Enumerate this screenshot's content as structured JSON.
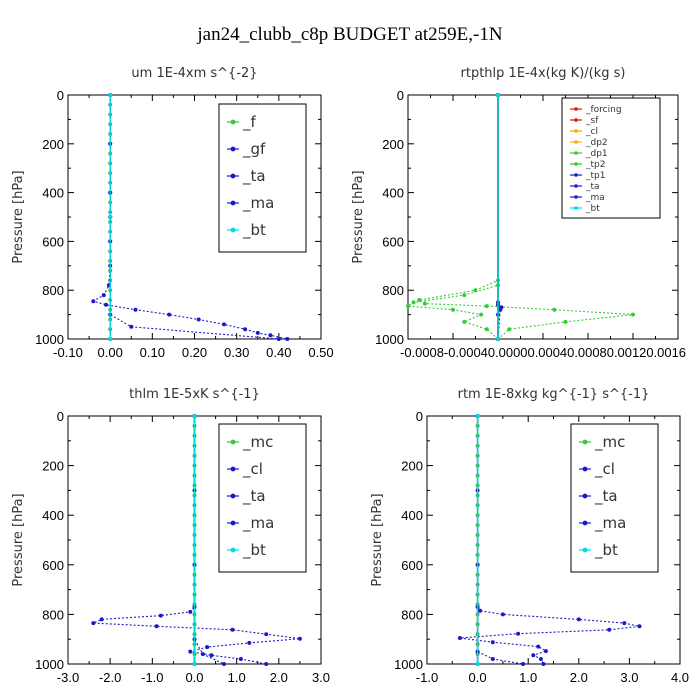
{
  "figure": {
    "title": "jan24_clubb_c8p  BUDGET at259E,-1N"
  },
  "colors": {
    "green": "#33cc33",
    "blue": "#1a1acc",
    "orange": "#ffaa00",
    "red": "#dd1111",
    "cyan": "#00dddd",
    "darkblue": "#0a0a99"
  },
  "chart_data": [
    {
      "type": "line",
      "title": "um   1E-4xm  s^{-2}",
      "xlabel": "",
      "ylabel": "",
      "xlim": [
        -0.1,
        0.5
      ],
      "ylim": [
        1000,
        0
      ],
      "xticks": [
        "-0.10",
        "0.00",
        "0.10",
        "0.20",
        "0.30",
        "0.40",
        "0.50"
      ],
      "yticks": [
        "0",
        "200",
        "400",
        "600",
        "800",
        "1000"
      ],
      "legend_position": "upper-right",
      "series": [
        {
          "name": "_f",
          "color": "#33cc33",
          "y": [
            0,
            40,
            80,
            120,
            160,
            200,
            240,
            280,
            320,
            360,
            400,
            440,
            480,
            520,
            560,
            600,
            640,
            680,
            720,
            760,
            800,
            840,
            880,
            920,
            960,
            1000
          ],
          "x": [
            0,
            0,
            0,
            0,
            0,
            0,
            0,
            0,
            0,
            0,
            0,
            0,
            0,
            0,
            0,
            0,
            0,
            0,
            0,
            0,
            0,
            0,
            0,
            0,
            0,
            0
          ]
        },
        {
          "name": "_gf",
          "color": "#1a1acc",
          "y": [
            0,
            200,
            400,
            600,
            700,
            780,
            820,
            845,
            860,
            880,
            900,
            920,
            940,
            960,
            975,
            985,
            1000
          ],
          "x": [
            0,
            0,
            0,
            0,
            0,
            -0.003,
            -0.015,
            -0.04,
            -0.01,
            0.06,
            0.14,
            0.21,
            0.27,
            0.32,
            0.35,
            0.38,
            0.42
          ]
        },
        {
          "name": "_ta",
          "color": "#1a1acc",
          "y": [
            0,
            500,
            900,
            950,
            1000
          ],
          "x": [
            0,
            0,
            0,
            0.05,
            0.4
          ]
        },
        {
          "name": "_ma",
          "color": "#1a1acc",
          "y": [
            0,
            500,
            1000
          ],
          "x": [
            0,
            0,
            0
          ]
        },
        {
          "name": "_bt",
          "color": "#00dddd",
          "y": [
            0,
            500,
            1000
          ],
          "x": [
            0,
            0,
            0
          ]
        }
      ]
    },
    {
      "type": "line",
      "title": "rtpthlp   1E-4x(kg K)/(kg s)",
      "xlabel": "",
      "ylabel": "",
      "xlim": [
        -0.0008,
        0.0016
      ],
      "ylim": [
        1000,
        0
      ],
      "xticks": [
        "-0.0008",
        "-0.0004",
        "0.0000",
        "0.0004",
        "0.0008",
        "0.0012",
        "0.0016"
      ],
      "xtick_row": "-0.0008-0.00040.00000.00040.00080.00120.0016",
      "yticks": [
        "0",
        "200",
        "400",
        "600",
        "800",
        "1000"
      ],
      "legend_position": "upper-right",
      "series": [
        {
          "name": "_forcing",
          "color": "#dd1111",
          "y": [
            0,
            1000
          ],
          "x": [
            0,
            0
          ]
        },
        {
          "name": "_sf",
          "color": "#dd1111",
          "y": [
            0,
            1000
          ],
          "x": [
            0,
            0
          ]
        },
        {
          "name": "_cl",
          "color": "#ffaa00",
          "y": [
            0,
            1000
          ],
          "x": [
            0,
            0
          ]
        },
        {
          "name": "_dp2",
          "color": "#ffaa00",
          "y": [
            0,
            1000
          ],
          "x": [
            0,
            0
          ]
        },
        {
          "name": "_dp1",
          "color": "#33cc33",
          "y": [
            0,
            760,
            800,
            840,
            855,
            865,
            880,
            900,
            930,
            960,
            1000
          ],
          "x": [
            0,
            0,
            -0.0002,
            -0.0007,
            -0.00065,
            -0.0001,
            0.0005,
            0.0012,
            0.0006,
            0.0001,
            0
          ]
        },
        {
          "name": "_tp2",
          "color": "#33cc33",
          "y": [
            0,
            780,
            820,
            850,
            865,
            880,
            900,
            930,
            960,
            1000
          ],
          "x": [
            0,
            0,
            -0.0003,
            -0.00075,
            -0.0008,
            -0.0004,
            -0.00015,
            -0.0003,
            -0.0001,
            0
          ]
        },
        {
          "name": "_tp1",
          "color": "#1a1acc",
          "y": [
            0,
            850,
            870,
            900,
            1000
          ],
          "x": [
            0,
            0,
            3e-05,
            0,
            0
          ]
        },
        {
          "name": "_ta",
          "color": "#1a1acc",
          "y": [
            0,
            860,
            880,
            1000
          ],
          "x": [
            0,
            0,
            2e-05,
            0
          ]
        },
        {
          "name": "_ma",
          "color": "#1a1acc",
          "y": [
            0,
            1000
          ],
          "x": [
            0,
            0
          ]
        },
        {
          "name": "_bt",
          "color": "#00dddd",
          "y": [
            0,
            1000
          ],
          "x": [
            0,
            0
          ]
        }
      ]
    },
    {
      "type": "line",
      "title": "thlm   1E-5xK  s^{-1}",
      "xlabel": "",
      "ylabel": "",
      "xlim": [
        -3.0,
        3.0
      ],
      "ylim": [
        1000,
        0
      ],
      "xticks": [
        "-3.0",
        "-2.0",
        "-1.0",
        "0.0",
        "1.0",
        "2.0",
        "3.0"
      ],
      "yticks": [
        "0",
        "200",
        "400",
        "600",
        "800",
        "1000"
      ],
      "legend_position": "upper-right",
      "series": [
        {
          "name": "_mc",
          "color": "#33cc33",
          "y": [
            0,
            40,
            80,
            120,
            160,
            200,
            240,
            280,
            320,
            360,
            400,
            440,
            480,
            520,
            560,
            600,
            640,
            680,
            720,
            760,
            800,
            840,
            880,
            920,
            960,
            1000
          ],
          "x": [
            0,
            0,
            0,
            0,
            0,
            0,
            0,
            0,
            0,
            0,
            0,
            0,
            0,
            0,
            0,
            0,
            0,
            0,
            0,
            0,
            0,
            0,
            0,
            0,
            0,
            0
          ]
        },
        {
          "name": "_cl",
          "color": "#1a1acc",
          "y": [
            0,
            300,
            600,
            770,
            790,
            805,
            820,
            835,
            848,
            862,
            880,
            898,
            915,
            932,
            950,
            965,
            980,
            1000
          ],
          "x": [
            0,
            0,
            0,
            0,
            -0.1,
            -0.8,
            -2.2,
            -2.4,
            -0.9,
            0.9,
            1.7,
            2.5,
            1.3,
            0.3,
            -0.1,
            0.4,
            1.1,
            1.7
          ]
        },
        {
          "name": "_ta",
          "color": "#1a1acc",
          "y": [
            0,
            900,
            960,
            1000
          ],
          "x": [
            0,
            0,
            0.2,
            0.7
          ]
        },
        {
          "name": "_ma",
          "color": "#1a1acc",
          "y": [
            0,
            1000
          ],
          "x": [
            0,
            0
          ]
        },
        {
          "name": "_bt",
          "color": "#00dddd",
          "y": [
            0,
            1000
          ],
          "x": [
            0,
            0
          ]
        }
      ]
    },
    {
      "type": "line",
      "title": "rtm   1E-8xkg  kg^{-1} s^{-1}",
      "xlabel": "",
      "ylabel": "",
      "xlim": [
        -1.0,
        4.0
      ],
      "ylim": [
        1000,
        0
      ],
      "xticks": [
        "-1.0",
        "0.0",
        "1.0",
        "2.0",
        "3.0",
        "4.0"
      ],
      "yticks": [
        "0",
        "200",
        "400",
        "600",
        "800",
        "1000"
      ],
      "legend_position": "upper-right",
      "series": [
        {
          "name": "_mc",
          "color": "#33cc33",
          "y": [
            0,
            40,
            80,
            120,
            160,
            200,
            240,
            280,
            320,
            360,
            400,
            440,
            480,
            520,
            560,
            600,
            640,
            680,
            720,
            760,
            800,
            840,
            880,
            920,
            960,
            1000
          ],
          "x": [
            0,
            0,
            0,
            0,
            0,
            0,
            0,
            0,
            0,
            0,
            0,
            0,
            0,
            0,
            0,
            0,
            0,
            0,
            0,
            0,
            0,
            0,
            0,
            0,
            0,
            0
          ]
        },
        {
          "name": "_cl",
          "color": "#1a1acc",
          "y": [
            0,
            300,
            600,
            770,
            785,
            800,
            820,
            835,
            848,
            862,
            878,
            895,
            912,
            930,
            948,
            965,
            980,
            1000
          ],
          "x": [
            0,
            0,
            0,
            0,
            0.05,
            0.5,
            2.0,
            2.9,
            3.2,
            2.6,
            0.8,
            -0.35,
            0.3,
            1.2,
            1.35,
            1.1,
            1.25,
            1.3
          ]
        },
        {
          "name": "_ta",
          "color": "#1a1acc",
          "y": [
            0,
            950,
            980,
            1000
          ],
          "x": [
            0,
            0,
            0.3,
            0.9
          ]
        },
        {
          "name": "_ma",
          "color": "#1a1acc",
          "y": [
            0,
            1000
          ],
          "x": [
            0,
            0
          ]
        },
        {
          "name": "_bt",
          "color": "#00dddd",
          "y": [
            0,
            1000
          ],
          "x": [
            0,
            0
          ]
        }
      ]
    }
  ],
  "yaxis_label": "Pressure [hPa]"
}
